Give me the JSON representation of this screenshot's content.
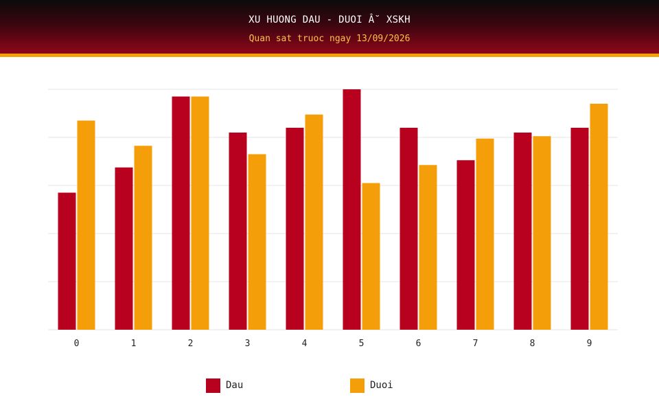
{
  "header": {
    "title": "XU HUONG DAU - DUOI Â˘ XSKH",
    "subtitle": "Quan sat truoc ngay 13/09/2026"
  },
  "colors": {
    "dau": "#b8001f",
    "duoi": "#f49f0a",
    "grid": "#e6e6e6",
    "header_strip": "#f2a20c"
  },
  "chart_data": {
    "type": "bar",
    "categories": [
      "0",
      "1",
      "2",
      "3",
      "4",
      "5",
      "6",
      "7",
      "8",
      "9"
    ],
    "series": [
      {
        "name": "Dau",
        "color": "#b8001f",
        "values": [
          57,
          67.5,
          97,
          82,
          84,
          100,
          84,
          70.5,
          82,
          84
        ]
      },
      {
        "name": "Duoi",
        "color": "#f49f0a",
        "values": [
          87,
          76.5,
          97,
          73,
          89.5,
          61,
          68.5,
          79.5,
          80.5,
          94
        ]
      }
    ],
    "ylim": [
      0,
      100
    ],
    "grid": true,
    "legend": "bottom"
  }
}
